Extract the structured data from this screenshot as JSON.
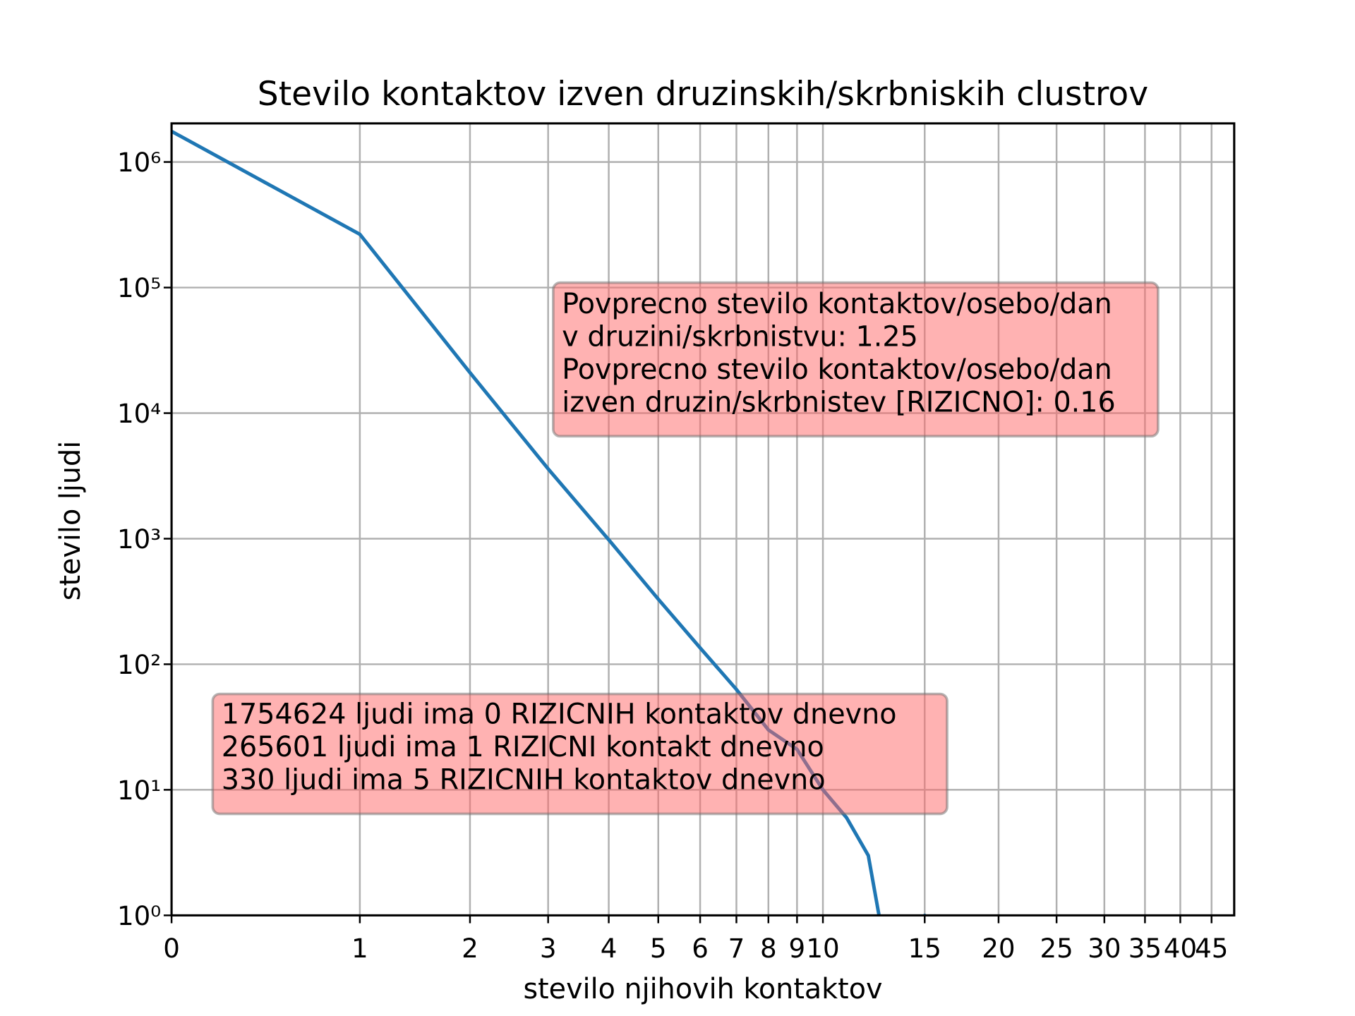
{
  "chart_data": {
    "type": "line",
    "title": "Stevilo kontaktov izven druzinskih/skrbniskih clustrov",
    "x_label": "stevilo njihovih kontaktov",
    "y_label": "stevilo ljudi",
    "x": [
      0,
      1,
      2,
      3,
      4,
      5,
      6,
      7,
      8,
      9,
      10,
      11,
      12,
      13,
      14,
      15,
      16,
      17
    ],
    "series": [
      {
        "name": "stevilo ljudi",
        "color": "#1f77b4",
        "values": [
          1754624,
          265601,
          21000,
          3600,
          980,
          330,
          135,
          63,
          30,
          21,
          10,
          6,
          3,
          0,
          0,
          1,
          0,
          1
        ]
      }
    ],
    "xscale": "log1p",
    "yscale": "log",
    "xlim": [
      0,
      49
    ],
    "xticks": [
      0,
      1,
      2,
      3,
      4,
      5,
      6,
      7,
      8,
      9,
      10,
      15,
      20,
      25,
      30,
      35,
      40,
      45
    ],
    "ylim": [
      1,
      2030000
    ],
    "yticks": [
      {
        "value": 1,
        "label": "10⁰"
      },
      {
        "value": 10,
        "label": "10¹"
      },
      {
        "value": 100,
        "label": "10²"
      },
      {
        "value": 1000,
        "label": "10³"
      },
      {
        "value": 10000,
        "label": "10⁴"
      },
      {
        "value": 100000,
        "label": "10⁵"
      },
      {
        "value": 1000000,
        "label": "10⁶"
      }
    ],
    "grid": true,
    "annotations": [
      {
        "lines": [
          "Povprecno stevilo kontaktov/osebo/dan",
          "v druzini/skrbnistvu: 1.25",
          "Povprecno stevilo kontaktov/osebo/dan",
          "izven druzin/skrbnistev [RIZICNO]: 0.16"
        ]
      },
      {
        "lines": [
          "1754624 ljudi ima 0 RIZICNIH kontaktov dnevno",
          "265601 ljudi ima 1 RIZICNI kontakt dnevno",
          "330 ljudi ima 5 RIZICNIH kontaktov dnevno"
        ]
      }
    ]
  }
}
